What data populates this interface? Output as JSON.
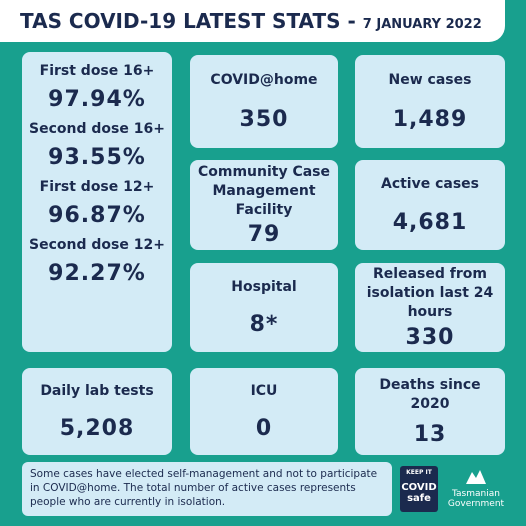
{
  "header": {
    "title": "TAS COVID-19 LATEST STATS",
    "separator": "-",
    "date": "7 JANUARY 2022"
  },
  "vaccination": [
    {
      "label": "First dose 16+",
      "value": "97.94%"
    },
    {
      "label": "Second dose 16+",
      "value": "93.55%"
    },
    {
      "label": "First dose 12+",
      "value": "96.87%"
    },
    {
      "label": "Second dose 12+",
      "value": "92.27%"
    }
  ],
  "cards": [
    {
      "label": "COVID@home",
      "value": "350"
    },
    {
      "label": "New cases",
      "value": "1,489"
    },
    {
      "label": "Community Case Management Facility",
      "value": "79"
    },
    {
      "label": "Active cases",
      "value": "4,681"
    },
    {
      "label": "Hospital",
      "value": "8*"
    },
    {
      "label": "Released from isolation last 24 hours",
      "value": "330"
    },
    {
      "label": "Daily lab tests",
      "value": "5,208"
    },
    {
      "label": "ICU",
      "value": "0"
    },
    {
      "label": "Deaths since 2020",
      "value": "13"
    }
  ],
  "footer": {
    "note": "Some cases have elected self-management and not to participate in COVID@home. The total number of active cases represents people who are currently in isolation.",
    "covid_logo": [
      "KEEP IT",
      "COVID",
      "safe"
    ],
    "gov_logo": [
      "Tasmanian",
      "Government"
    ]
  }
}
